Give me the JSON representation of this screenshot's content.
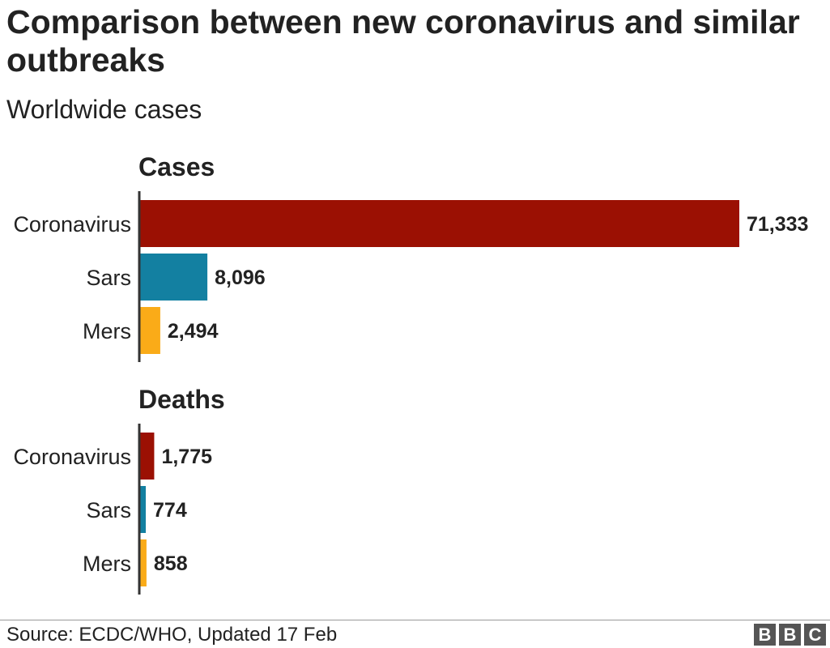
{
  "header": {
    "title": "Comparison between new coronavirus and similar outbreaks",
    "subtitle": "Worldwide cases"
  },
  "footer": {
    "source": "Source: ECDC/WHO, Updated 17 Feb",
    "logo_letters": [
      "B",
      "B",
      "C"
    ]
  },
  "colors": {
    "coronavirus": "#9b1003",
    "sars": "#1380a1",
    "mers": "#faab18",
    "axis": "#333333",
    "text": "#222222"
  },
  "chart_data": [
    {
      "type": "bar",
      "orientation": "horizontal",
      "title": "Cases",
      "categories": [
        "Coronavirus",
        "Sars",
        "Mers"
      ],
      "values": [
        71333,
        8096,
        2494
      ],
      "value_labels": [
        "71,333",
        "8,096",
        "2,494"
      ],
      "xlim": [
        0,
        71333
      ],
      "grid": false,
      "legend": "none"
    },
    {
      "type": "bar",
      "orientation": "horizontal",
      "title": "Deaths",
      "categories": [
        "Coronavirus",
        "Sars",
        "Mers"
      ],
      "values": [
        1775,
        774,
        858
      ],
      "value_labels": [
        "1,775",
        "774",
        "858"
      ],
      "xlim": [
        0,
        71333
      ],
      "grid": false,
      "legend": "none"
    }
  ]
}
